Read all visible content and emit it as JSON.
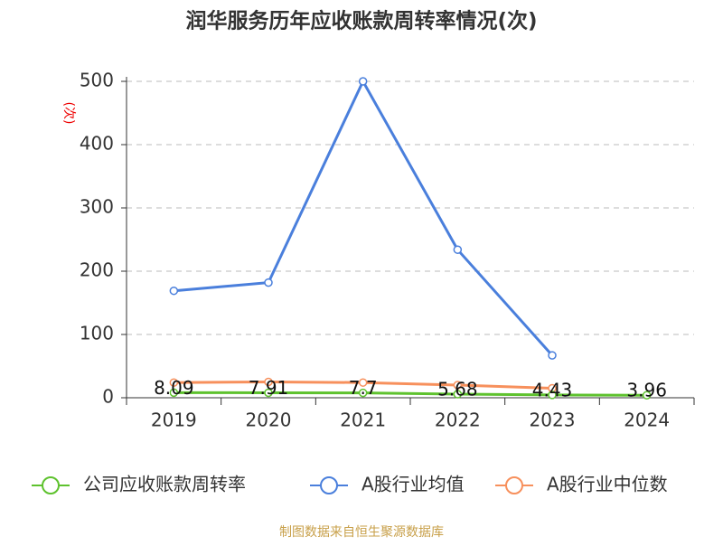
{
  "chart_data": {
    "type": "line",
    "title": "润华服务历年应收账款周转率情况(次)",
    "y_label": "(次)",
    "source": "制图数据来自恒生聚源数据库",
    "categories": [
      "2019",
      "2020",
      "2021",
      "2022",
      "2023",
      "2024"
    ],
    "series": [
      {
        "name": "公司应收账款周转率",
        "color": "#5ec22e",
        "values": [
          8.09,
          7.91,
          7.7,
          5.68,
          4.43,
          3.96
        ],
        "data_labels": true
      },
      {
        "name": "A股行业均值",
        "color": "#4a7fdc",
        "values": [
          169,
          182,
          500,
          234,
          67,
          null
        ]
      },
      {
        "name": "A股行业中位数",
        "color": "#f7905c",
        "values": [
          24,
          25,
          24,
          20,
          15,
          null
        ]
      }
    ],
    "ylim": [
      0,
      500
    ],
    "yticks": [
      0,
      100,
      200,
      300,
      400,
      500
    ],
    "grid": true,
    "legend": "bottom"
  }
}
